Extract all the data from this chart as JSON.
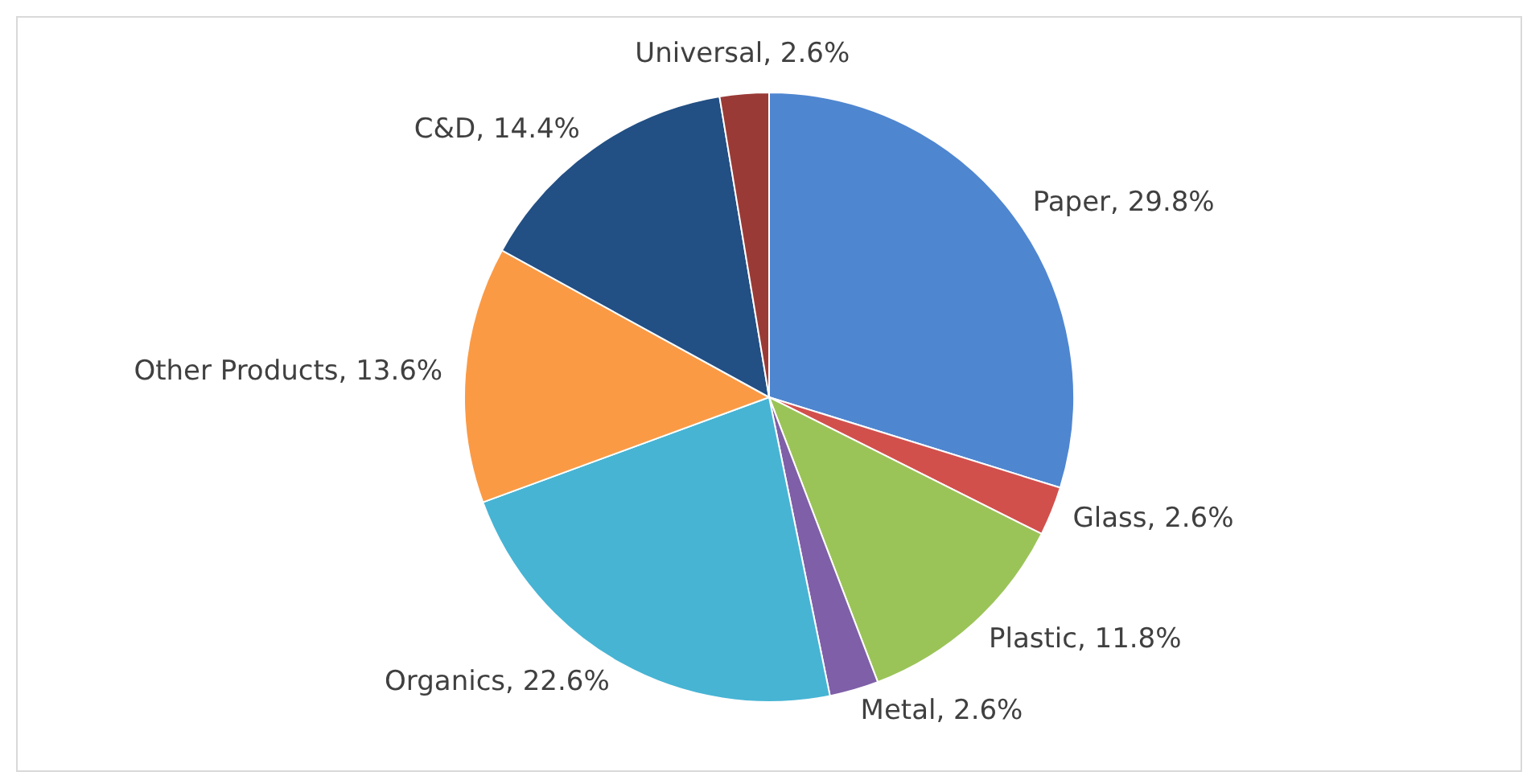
{
  "chart_data": {
    "type": "pie",
    "categories": [
      "Paper",
      "Glass",
      "Plastic",
      "Metal",
      "Organics",
      "Other Products",
      "C&D",
      "Universal"
    ],
    "values": [
      29.8,
      2.6,
      11.8,
      2.6,
      22.6,
      13.6,
      14.4,
      2.6
    ],
    "value_labels": [
      "29.8%",
      "2.6%",
      "11.8%",
      "2.6%",
      "22.6%",
      "13.6%",
      "14.4%",
      "2.6%"
    ],
    "colors": [
      "#4f86d0",
      "#d2504c",
      "#9bc458",
      "#7f5fa8",
      "#47b4d4",
      "#fb9a45",
      "#224f84",
      "#9a3a36"
    ],
    "legend": false
  }
}
